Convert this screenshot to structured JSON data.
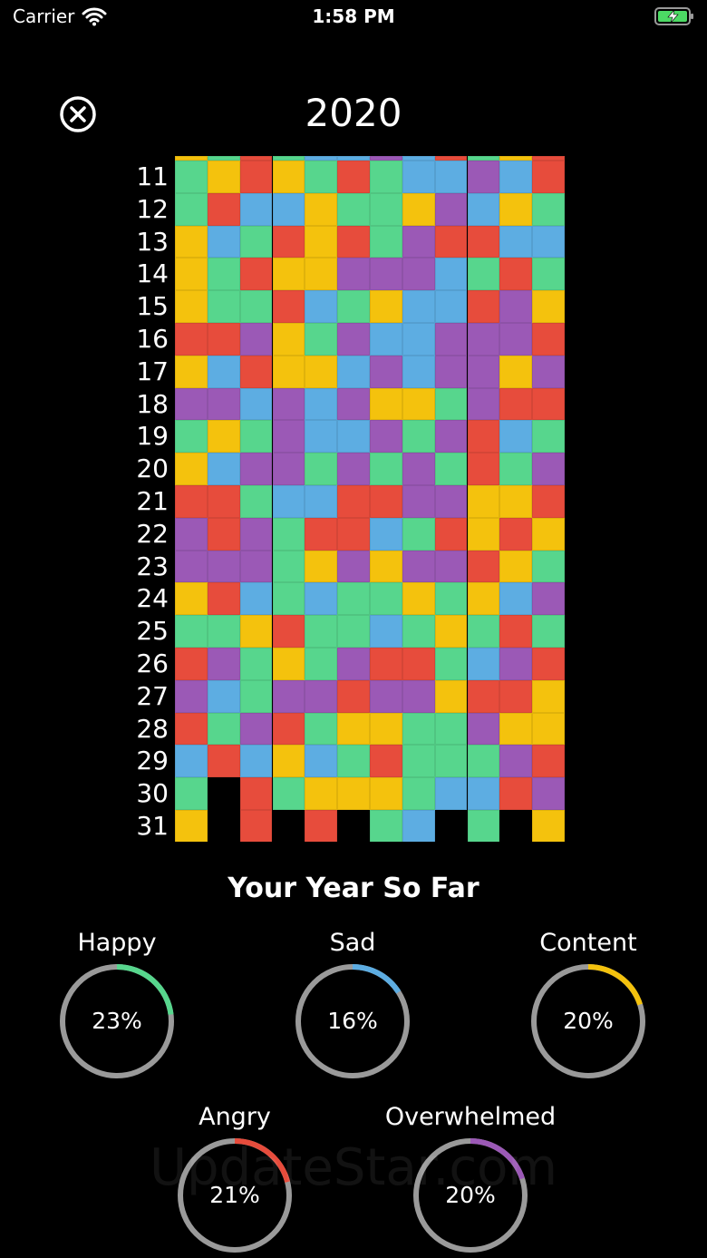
{
  "status_bar": {
    "carrier": "Carrier",
    "time": "1:58 PM"
  },
  "header": {
    "year": "2020",
    "close_icon": "close-circle-icon"
  },
  "colors": {
    "happy": "#57d68d",
    "sad": "#5dade2",
    "content": "#f4c20d",
    "angry": "#e74c3c",
    "overwhelmed": "#9b59b6",
    "ring_track": "#9a9a9a"
  },
  "calendar": {
    "first_day": 11,
    "rows": [
      "GYRYGRGBBPBR",
      "GRBBYGGYPBYG",
      "YBGRYRGPRRBB",
      "YGRYYPPPBGRG",
      "YGGRBGYBBRPY",
      "RRPYGPBBPPPR",
      "YBRYYBPBPPYP",
      "PPBPBPYYGPRR",
      "GYGPBBPGPRBG",
      "YBPPGPGPGRGP",
      "RRGBBRRPPYYR",
      "PRPGRRBGRYRY",
      "PPPGYPYPPRYG",
      "YRBGBGGYGYBP",
      "GGYRGGBGYGRG",
      "RPGYGPRRGBPR",
      "PBGPPRPPYRRY",
      "RGPRGYYGGPYY",
      "BRBYBGRGGGPR",
      "G.RGYYYGBBRP",
      "Y.R.R.GB.G.Y"
    ]
  },
  "summary": {
    "title": "Your Year So Far",
    "moods": [
      {
        "name": "Happy",
        "value_text": "23%",
        "percent": 23,
        "color": "#57d68d"
      },
      {
        "name": "Sad",
        "value_text": "16%",
        "percent": 16,
        "color": "#5dade2"
      },
      {
        "name": "Content",
        "value_text": "20%",
        "percent": 20,
        "color": "#f4c20d"
      },
      {
        "name": "Angry",
        "value_text": "21%",
        "percent": 21,
        "color": "#e74c3c"
      },
      {
        "name": "Overwhelmed",
        "value_text": "20%",
        "percent": 20,
        "color": "#9b59b6"
      }
    ]
  },
  "watermark": "UpdateStar.com"
}
